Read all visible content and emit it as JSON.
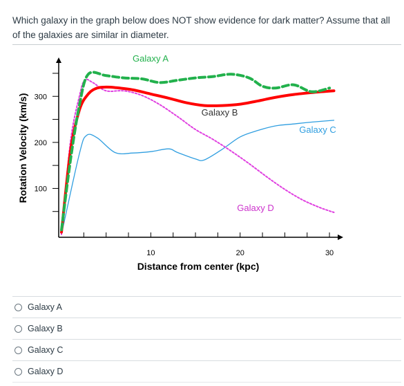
{
  "question": {
    "text": "Which galaxy in the graph below does NOT show evidence for dark matter? Assume that all of the galaxies are similar in diameter."
  },
  "answers": [
    {
      "label": "Galaxy A"
    },
    {
      "label": "Galaxy B"
    },
    {
      "label": "Galaxy C"
    },
    {
      "label": "Galaxy D"
    }
  ],
  "chart_data": {
    "type": "line",
    "xlabel": "Distance from center (kpc)",
    "ylabel": "Rotation Velocity (km/s)",
    "xlim": [
      0,
      31
    ],
    "ylim": [
      0,
      380
    ],
    "xticks": [
      10,
      20,
      30
    ],
    "yticks": [
      100,
      200,
      300
    ],
    "grid": false,
    "series": [
      {
        "name": "Galaxy A",
        "color": "#22b14c",
        "style": "dashed-thick",
        "x": [
          0,
          1,
          2,
          3,
          5,
          7,
          9,
          11,
          13,
          15,
          17,
          19,
          21,
          22.5,
          24,
          26,
          28,
          30
        ],
        "y": [
          10,
          160,
          280,
          348,
          345,
          340,
          338,
          330,
          335,
          340,
          343,
          348,
          340,
          322,
          318,
          325,
          310,
          318
        ]
      },
      {
        "name": "Galaxy B",
        "color": "#ff0000",
        "style": "solid-thick",
        "x": [
          0,
          1,
          2,
          3,
          4,
          5,
          6,
          8,
          10,
          12,
          14,
          16,
          18,
          20,
          22,
          24,
          26,
          28,
          30.5
        ],
        "y": [
          5,
          180,
          270,
          305,
          318,
          320,
          319,
          314,
          305,
          296,
          286,
          280,
          280,
          283,
          290,
          298,
          304,
          308,
          312
        ]
      },
      {
        "name": "Galaxy C",
        "color": "#2f9ee0",
        "style": "solid-thin",
        "x": [
          0,
          2,
          2.8,
          4,
          6,
          8,
          10,
          12,
          13,
          15,
          16,
          18,
          20,
          22,
          24,
          26,
          28,
          30.5
        ],
        "y": [
          0,
          175,
          215,
          210,
          178,
          177,
          180,
          186,
          178,
          164,
          162,
          185,
          212,
          226,
          236,
          240,
          244,
          248
        ]
      },
      {
        "name": "Galaxy D",
        "color": "#e040e0",
        "style": "dashed-thin",
        "x": [
          0,
          1,
          2,
          2.6,
          3.5,
          5,
          7,
          9,
          11,
          13,
          15,
          17,
          19,
          21,
          23,
          25,
          27,
          29,
          30.5
        ],
        "y": [
          0,
          200,
          300,
          335,
          330,
          312,
          312,
          302,
          282,
          256,
          228,
          206,
          181,
          154,
          125,
          98,
          75,
          58,
          48
        ]
      }
    ]
  }
}
